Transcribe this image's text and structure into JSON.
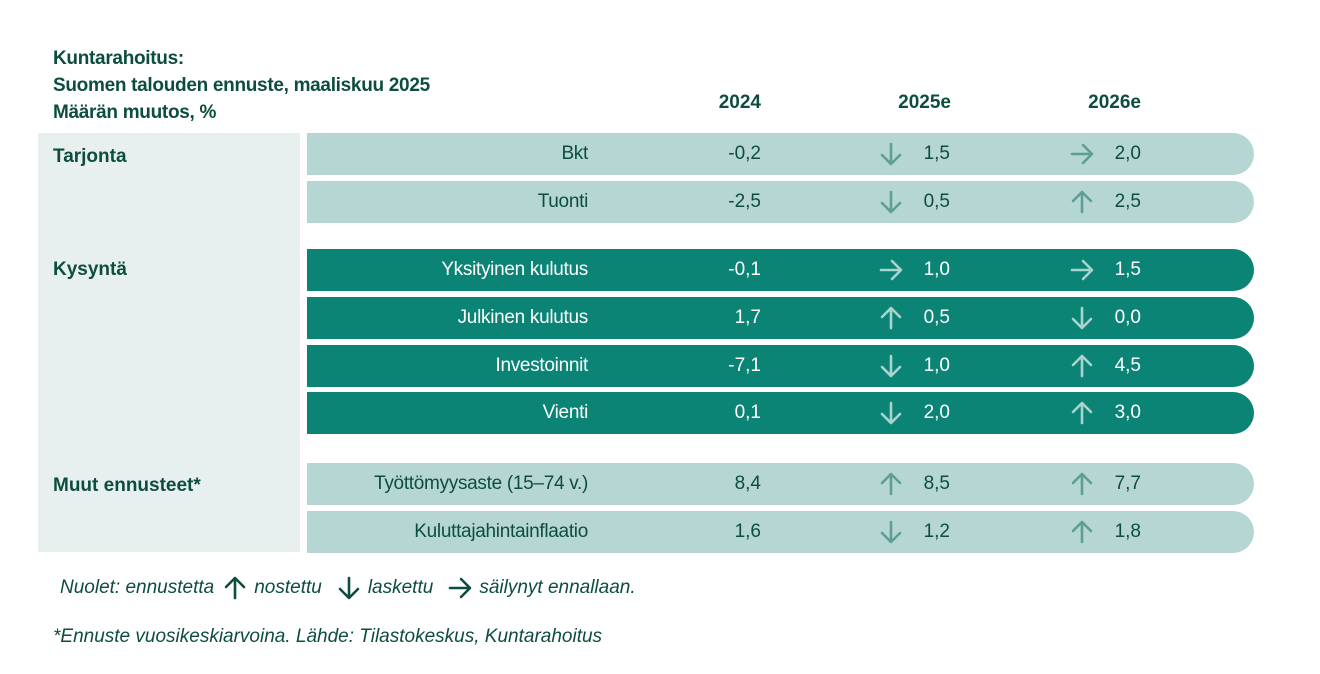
{
  "title_lines": [
    "Kuntarahoitus:",
    "Suomen talouden ennuste, maaliskuu 2025",
    "Määrän muutos, %"
  ],
  "columns": [
    "2024",
    "2025e",
    "2026e"
  ],
  "groups": [
    {
      "name": "Tarjonta",
      "style": "light",
      "rows": [
        {
          "label": "Bkt",
          "v2024": "-0,2",
          "v2025": "1,5",
          "a2025": "down",
          "v2026": "2,0",
          "a2026": "right"
        },
        {
          "label": "Tuonti",
          "v2024": "-2,5",
          "v2025": "0,5",
          "a2025": "down",
          "v2026": "2,5",
          "a2026": "up"
        }
      ]
    },
    {
      "name": "Kysyntä",
      "style": "dark",
      "rows": [
        {
          "label": "Yksityinen kulutus",
          "v2024": "-0,1",
          "v2025": "1,0",
          "a2025": "right",
          "v2026": "1,5",
          "a2026": "right"
        },
        {
          "label": "Julkinen kulutus",
          "v2024": "1,7",
          "v2025": "0,5",
          "a2025": "up",
          "v2026": "0,0",
          "a2026": "down"
        },
        {
          "label": "Investoinnit",
          "v2024": "-7,1",
          "v2025": "1,0",
          "a2025": "down",
          "v2026": "4,5",
          "a2026": "up"
        },
        {
          "label": "Vienti",
          "v2024": "0,1",
          "v2025": "2,0",
          "a2025": "down",
          "v2026": "3,0",
          "a2026": "up"
        }
      ]
    },
    {
      "name": "Muut ennusteet*",
      "style": "light",
      "rows": [
        {
          "label": "Työttömyysaste (15–74 v.)",
          "v2024": "8,4",
          "v2025": "8,5",
          "a2025": "up",
          "v2026": "7,7",
          "a2026": "up"
        },
        {
          "label": "Kuluttajahintainflaatio",
          "v2024": "1,6",
          "v2025": "1,2",
          "a2025": "down",
          "v2026": "1,8",
          "a2026": "up"
        }
      ]
    }
  ],
  "legend": {
    "prefix": "Nuolet: ennustetta",
    "up_label": "nostettu",
    "down_label": "laskettu",
    "right_label": "säilynyt ennallaan."
  },
  "footnote": "*Ennuste vuosikeskiarvoina.  Lähde: Tilastokeskus, Kuntarahoitus",
  "colors": {
    "text": "#0d4d40",
    "light_row": "#b6d6d3",
    "dark_row": "#0b8375",
    "panel": "#e7f0ee"
  },
  "chart_data": {
    "type": "table",
    "title": "Kuntarahoitus: Suomen talouden ennuste, maaliskuu 2025",
    "subtitle": "Määrän muutos, %",
    "columns": [
      "2024",
      "2025e",
      "2026e"
    ],
    "rows": [
      {
        "group": "Tarjonta",
        "label": "Bkt",
        "values": [
          -0.2,
          1.5,
          2.0
        ],
        "revisions": [
          "",
          "down",
          "right"
        ]
      },
      {
        "group": "Tarjonta",
        "label": "Tuonti",
        "values": [
          -2.5,
          0.5,
          2.5
        ],
        "revisions": [
          "",
          "down",
          "up"
        ]
      },
      {
        "group": "Kysyntä",
        "label": "Yksityinen kulutus",
        "values": [
          -0.1,
          1.0,
          1.5
        ],
        "revisions": [
          "",
          "right",
          "right"
        ]
      },
      {
        "group": "Kysyntä",
        "label": "Julkinen kulutus",
        "values": [
          1.7,
          0.5,
          0.0
        ],
        "revisions": [
          "",
          "up",
          "down"
        ]
      },
      {
        "group": "Kysyntä",
        "label": "Investoinnit",
        "values": [
          -7.1,
          1.0,
          4.5
        ],
        "revisions": [
          "",
          "down",
          "up"
        ]
      },
      {
        "group": "Kysyntä",
        "label": "Vienti",
        "values": [
          0.1,
          2.0,
          3.0
        ],
        "revisions": [
          "",
          "down",
          "up"
        ]
      },
      {
        "group": "Muut ennusteet*",
        "label": "Työttömyysaste (15–74 v.)",
        "values": [
          8.4,
          8.5,
          7.7
        ],
        "revisions": [
          "",
          "up",
          "up"
        ]
      },
      {
        "group": "Muut ennusteet*",
        "label": "Kuluttajahintainflaatio",
        "values": [
          1.6,
          1.2,
          1.8
        ],
        "revisions": [
          "",
          "down",
          "up"
        ]
      }
    ]
  }
}
